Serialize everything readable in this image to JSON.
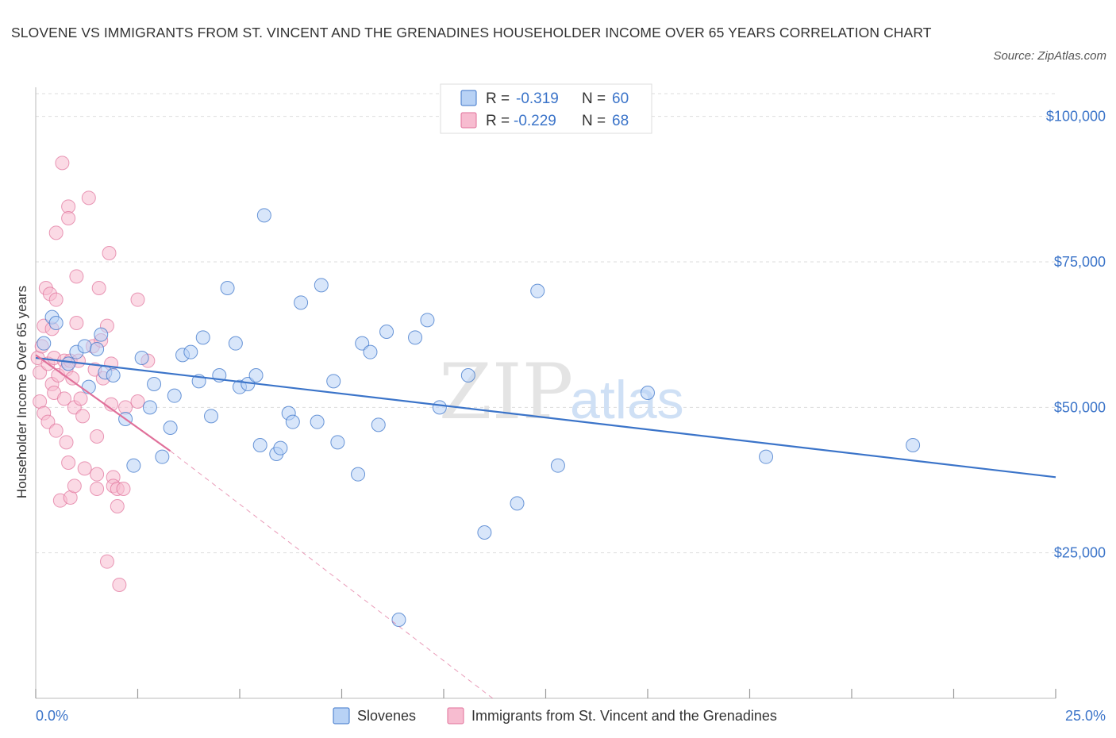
{
  "title": "SLOVENE VS IMMIGRANTS FROM ST. VINCENT AND THE GRENADINES HOUSEHOLDER INCOME OVER 65 YEARS CORRELATION CHART",
  "source": "Source: ZipAtlas.com",
  "watermark": {
    "zip": "ZIP",
    "atlas": "atlas"
  },
  "legend": {
    "rows": [
      {
        "r_label": "R =",
        "r_value": "-0.319",
        "n_label": "N =",
        "n_value": "60"
      },
      {
        "r_label": "R =",
        "r_value": "-0.229",
        "n_label": "N =",
        "n_value": "68"
      }
    ]
  },
  "colors": {
    "blue": "#3b74c9",
    "blue_fill": "#b8d2f5",
    "pink": "#e0709a",
    "pink_fill": "#f7bcd0",
    "grid": "#dddddd"
  },
  "chart_data": {
    "type": "scatter",
    "title": "SLOVENE VS IMMIGRANTS FROM ST. VINCENT AND THE GRENADINES HOUSEHOLDER INCOME OVER 65 YEARS CORRELATION CHART",
    "xlabel": "",
    "ylabel": "Householder Income Over 65 years",
    "xlim": [
      0,
      25
    ],
    "ylim": [
      0,
      105000
    ],
    "x_tick_labels": [
      "0.0%",
      "25.0%"
    ],
    "y_ticks": [
      25000,
      50000,
      75000,
      100000
    ],
    "y_tick_labels": [
      "$25,000",
      "$50,000",
      "$75,000",
      "$100,000"
    ],
    "grid": true,
    "legend_position": "top-center",
    "series": [
      {
        "name": "Slovenes",
        "color": "#3b74c9",
        "R": -0.319,
        "N": 60,
        "trend": {
          "x": [
            0,
            25
          ],
          "y": [
            58500,
            38000
          ]
        },
        "points": [
          [
            0.2,
            61000
          ],
          [
            0.4,
            65500
          ],
          [
            0.5,
            64500
          ],
          [
            0.8,
            57500
          ],
          [
            1.0,
            59500
          ],
          [
            1.2,
            60500
          ],
          [
            1.3,
            53500
          ],
          [
            1.5,
            60000
          ],
          [
            1.6,
            62500
          ],
          [
            1.7,
            56000
          ],
          [
            1.9,
            55500
          ],
          [
            2.2,
            48000
          ],
          [
            2.4,
            40000
          ],
          [
            2.6,
            58500
          ],
          [
            2.8,
            50000
          ],
          [
            2.9,
            54000
          ],
          [
            3.1,
            41500
          ],
          [
            3.3,
            46500
          ],
          [
            3.4,
            52000
          ],
          [
            3.6,
            59000
          ],
          [
            3.8,
            59500
          ],
          [
            4.0,
            54500
          ],
          [
            4.1,
            62000
          ],
          [
            4.3,
            48500
          ],
          [
            4.5,
            55500
          ],
          [
            4.7,
            70500
          ],
          [
            4.9,
            61000
          ],
          [
            5.0,
            53500
          ],
          [
            5.2,
            54000
          ],
          [
            5.4,
            55500
          ],
          [
            5.5,
            43500
          ],
          [
            5.6,
            83000
          ],
          [
            5.9,
            42000
          ],
          [
            6.0,
            43000
          ],
          [
            6.2,
            49000
          ],
          [
            6.3,
            47500
          ],
          [
            6.5,
            68000
          ],
          [
            6.9,
            47500
          ],
          [
            7.0,
            71000
          ],
          [
            7.3,
            54500
          ],
          [
            7.4,
            44000
          ],
          [
            7.9,
            38500
          ],
          [
            8.0,
            61000
          ],
          [
            8.2,
            59500
          ],
          [
            8.4,
            47000
          ],
          [
            8.6,
            63000
          ],
          [
            8.9,
            13500
          ],
          [
            9.3,
            62000
          ],
          [
            9.6,
            65000
          ],
          [
            9.9,
            50000
          ],
          [
            10.6,
            55500
          ],
          [
            11.0,
            28500
          ],
          [
            11.8,
            33500
          ],
          [
            12.3,
            70000
          ],
          [
            12.8,
            40000
          ],
          [
            15.0,
            52500
          ],
          [
            17.9,
            41500
          ],
          [
            21.5,
            43500
          ]
        ]
      },
      {
        "name": "Immigrants from St. Vincent and the Grenadines",
        "color": "#e0709a",
        "R": -0.229,
        "N": 68,
        "trend": {
          "x": [
            0,
            3.3
          ],
          "y": [
            59000,
            42500
          ]
        },
        "trend_extension": {
          "x": [
            3.3,
            11.2
          ],
          "y": [
            42500,
            0
          ]
        },
        "points": [
          [
            0.05,
            58500
          ],
          [
            0.1,
            56000
          ],
          [
            0.1,
            51000
          ],
          [
            0.15,
            60500
          ],
          [
            0.2,
            64000
          ],
          [
            0.2,
            49000
          ],
          [
            0.25,
            70500
          ],
          [
            0.3,
            57500
          ],
          [
            0.3,
            47500
          ],
          [
            0.35,
            69500
          ],
          [
            0.4,
            63500
          ],
          [
            0.4,
            54000
          ],
          [
            0.45,
            58500
          ],
          [
            0.45,
            52500
          ],
          [
            0.5,
            80000
          ],
          [
            0.5,
            68500
          ],
          [
            0.5,
            46000
          ],
          [
            0.55,
            55500
          ],
          [
            0.6,
            34000
          ],
          [
            0.65,
            92000
          ],
          [
            0.7,
            58000
          ],
          [
            0.7,
            51500
          ],
          [
            0.75,
            56500
          ],
          [
            0.75,
            44000
          ],
          [
            0.8,
            84500
          ],
          [
            0.8,
            82500
          ],
          [
            0.8,
            40500
          ],
          [
            0.85,
            58000
          ],
          [
            0.85,
            34500
          ],
          [
            0.9,
            55000
          ],
          [
            0.95,
            50000
          ],
          [
            0.95,
            36500
          ],
          [
            1.0,
            72500
          ],
          [
            1.0,
            64500
          ],
          [
            1.05,
            58000
          ],
          [
            1.1,
            51500
          ],
          [
            1.15,
            48500
          ],
          [
            1.2,
            39500
          ],
          [
            1.3,
            86000
          ],
          [
            1.4,
            60500
          ],
          [
            1.45,
            56500
          ],
          [
            1.5,
            45000
          ],
          [
            1.5,
            38500
          ],
          [
            1.5,
            36000
          ],
          [
            1.55,
            70500
          ],
          [
            1.6,
            61500
          ],
          [
            1.65,
            55000
          ],
          [
            1.75,
            64000
          ],
          [
            1.75,
            23500
          ],
          [
            1.8,
            76500
          ],
          [
            1.85,
            57500
          ],
          [
            1.85,
            50500
          ],
          [
            1.9,
            38000
          ],
          [
            1.9,
            36500
          ],
          [
            2.0,
            36000
          ],
          [
            2.0,
            33000
          ],
          [
            2.05,
            19500
          ],
          [
            2.15,
            36000
          ],
          [
            2.2,
            50000
          ],
          [
            2.5,
            68500
          ],
          [
            2.5,
            51000
          ],
          [
            2.75,
            58000
          ]
        ]
      }
    ]
  },
  "x_ticks_minor": [
    2.5,
    5,
    7.5,
    10,
    12.5,
    15,
    17.5,
    20,
    22.5
  ]
}
